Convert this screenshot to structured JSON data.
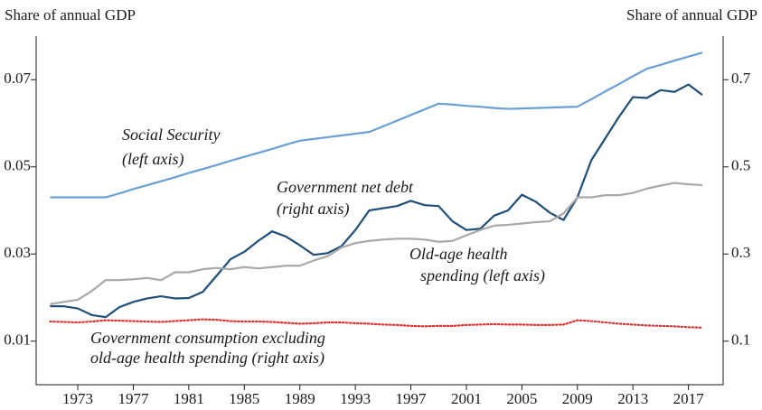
{
  "chart_data": {
    "type": "line",
    "ylabel": "Share of annual GDP",
    "y2label": "Share of annual GDP",
    "x": [
      1971,
      1972,
      1973,
      1974,
      1975,
      1976,
      1977,
      1978,
      1979,
      1980,
      1981,
      1982,
      1983,
      1984,
      1985,
      1986,
      1987,
      1988,
      1989,
      1990,
      1991,
      1992,
      1993,
      1994,
      1995,
      1996,
      1997,
      1998,
      1999,
      2000,
      2001,
      2002,
      2003,
      2004,
      2005,
      2006,
      2007,
      2008,
      2009,
      2010,
      2011,
      2012,
      2013,
      2014,
      2015,
      2016,
      2017,
      2018
    ],
    "xlim": [
      1970,
      2019.5
    ],
    "xticks": [
      1973,
      1977,
      1981,
      1985,
      1989,
      1993,
      1997,
      2001,
      2005,
      2009,
      2013,
      2017
    ],
    "ylim": [
      0,
      0.08
    ],
    "yticks": [
      0.01,
      0.03,
      0.05,
      0.07
    ],
    "y2lim": [
      0,
      0.8
    ],
    "y2ticks": [
      0.1,
      0.3,
      0.5,
      0.7
    ],
    "series": [
      {
        "color": "#6a9fd4",
        "style": "solid",
        "values": [
          0.043,
          0.043,
          0.043,
          0.043,
          0.043,
          0.0439,
          0.0449,
          0.0458,
          0.0467,
          0.0476,
          0.0486,
          0.0495,
          0.0504,
          0.0514,
          0.0523,
          0.0532,
          0.0541,
          0.0551,
          0.056,
          0.0564,
          0.0568,
          0.0572,
          0.0576,
          0.058,
          0.0593,
          0.0606,
          0.0619,
          0.0632,
          0.0645,
          0.0643,
          0.064,
          0.0638,
          0.0635,
          0.0633,
          0.0634,
          0.0635,
          0.0636,
          0.0637,
          0.0638,
          0.0655,
          0.0673,
          0.069,
          0.0708,
          0.0725,
          0.0734,
          0.0744,
          0.0753,
          0.0762
        ]
      },
      {
        "color": "#1f4e79",
        "style": "solid",
        "axis": "y2",
        "values": [
          0.18,
          0.18,
          0.175,
          0.16,
          0.155,
          0.178,
          0.19,
          0.198,
          0.203,
          0.198,
          0.199,
          0.213,
          0.25,
          0.288,
          0.305,
          0.33,
          0.352,
          0.34,
          0.32,
          0.298,
          0.302,
          0.318,
          0.355,
          0.4,
          0.405,
          0.41,
          0.422,
          0.412,
          0.41,
          0.375,
          0.355,
          0.358,
          0.388,
          0.4,
          0.436,
          0.42,
          0.395,
          0.378,
          0.43,
          0.515,
          0.565,
          0.615,
          0.66,
          0.658,
          0.676,
          0.672,
          0.689,
          0.665
        ]
      },
      {
        "color": "#a8a8a8",
        "style": "solid",
        "values": [
          0.0185,
          0.019,
          0.0195,
          0.0215,
          0.024,
          0.024,
          0.0242,
          0.0245,
          0.024,
          0.0258,
          0.0258,
          0.0265,
          0.0268,
          0.0265,
          0.027,
          0.0267,
          0.027,
          0.0273,
          0.0273,
          0.0285,
          0.0295,
          0.0315,
          0.0325,
          0.033,
          0.0333,
          0.0335,
          0.0335,
          0.0333,
          0.0328,
          0.033,
          0.0343,
          0.0355,
          0.0365,
          0.0367,
          0.037,
          0.0373,
          0.0375,
          0.0393,
          0.043,
          0.043,
          0.0435,
          0.0435,
          0.044,
          0.045,
          0.0457,
          0.0463,
          0.046,
          0.0458
        ]
      },
      {
        "color": "#e03030",
        "style": "dotted",
        "axis": "y2",
        "values": [
          0.145,
          0.144,
          0.143,
          0.145,
          0.148,
          0.147,
          0.146,
          0.145,
          0.144,
          0.146,
          0.148,
          0.15,
          0.149,
          0.146,
          0.145,
          0.145,
          0.144,
          0.142,
          0.14,
          0.141,
          0.143,
          0.143,
          0.141,
          0.14,
          0.138,
          0.137,
          0.135,
          0.134,
          0.135,
          0.135,
          0.137,
          0.138,
          0.139,
          0.138,
          0.138,
          0.137,
          0.137,
          0.138,
          0.148,
          0.146,
          0.143,
          0.14,
          0.138,
          0.136,
          0.135,
          0.134,
          0.132,
          0.131
        ]
      }
    ],
    "annotations": [
      [
        "Social Security",
        "(left axis)"
      ],
      [
        "Government net debt",
        "(right axis)"
      ],
      [
        "Old-age health",
        "spending (left axis)"
      ],
      [
        "Government consumption excluding",
        "old-age health spending (right axis)"
      ]
    ]
  }
}
